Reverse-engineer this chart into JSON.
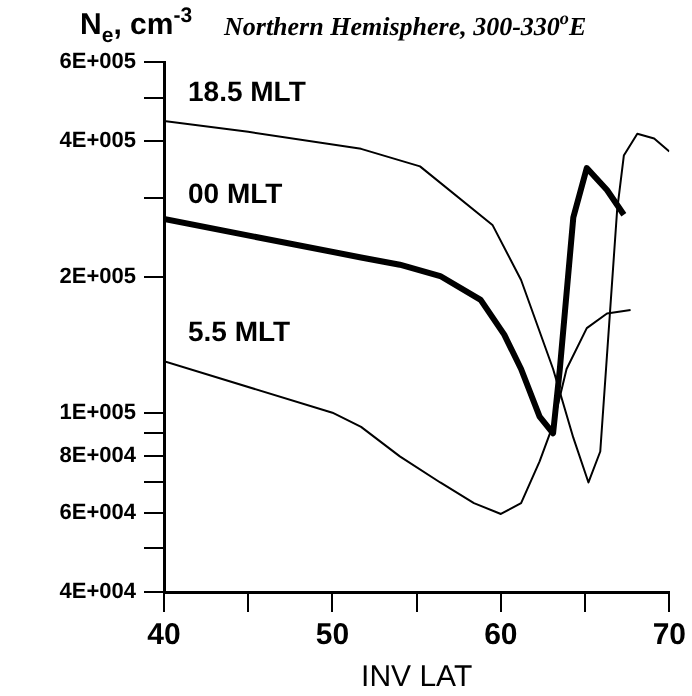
{
  "chart_data": {
    "type": "line",
    "title": "Northern Hemisphere, 300-330$^{o}$E",
    "ylabel": "N$_{e}$, cm$^{-3}$",
    "xlabel": "INV LAT",
    "log": true,
    "grid": false,
    "legend": false,
    "marker": "none",
    "line_style": "solid",
    "xlim": [
      40,
      70
    ],
    "xticks": [
      40,
      {
        "value": 45,
        "label": null
      },
      50,
      {
        "value": 55,
        "label": null
      },
      60,
      {
        "value": 65,
        "label": null
      },
      70
    ],
    "ylim": [
      40000,
      600000
    ],
    "yticks": [
      {
        "value": 40000,
        "label": "4E+004"
      },
      {
        "value": 50000,
        "label": null
      },
      {
        "value": 60000,
        "label": "6E+004"
      },
      {
        "value": 70000,
        "label": null
      },
      {
        "value": 80000,
        "label": "8E+004"
      },
      {
        "value": 90000,
        "label": null
      },
      {
        "value": 100000,
        "label": "1E+005"
      },
      {
        "value": 200000,
        "label": "2E+005"
      },
      {
        "value": 300000,
        "label": null
      },
      {
        "value": 400000,
        "label": "4E+005"
      },
      {
        "value": 500000,
        "label": null
      },
      {
        "value": 600000,
        "label": "6E+005"
      }
    ],
    "series": [
      {
        "name": "18.5 MLT",
        "color": "#000000",
        "x": [
          40,
          45,
          51.7,
          55.2,
          59.5,
          61.2,
          63.1,
          64.3,
          65.2,
          65.9,
          66.9,
          67.3,
          68.1,
          69.1,
          70
        ],
        "values": [
          444000,
          420000,
          385000,
          352000,
          261000,
          197000,
          125000,
          88000,
          70000,
          82000,
          281000,
          372000,
          416000,
          406000,
          380000
        ]
      },
      {
        "name": "00 MLT",
        "color": "#000000",
        "x": [
          40,
          51.7,
          54,
          56.4,
          58.8,
          60.2,
          61.2,
          62.3,
          63.1,
          63.5,
          64.3,
          65.1,
          66.3,
          67.3
        ],
        "values": [
          269000,
          221000,
          213000,
          201000,
          178000,
          149000,
          125000,
          98000,
          90000,
          125000,
          271000,
          349000,
          312000,
          275000
        ]
      },
      {
        "name": "5.5 MLT",
        "color": "#000000",
        "x": [
          40,
          50,
          51.7,
          54,
          56.4,
          58.4,
          60,
          61.2,
          62.3,
          63.1,
          63.9,
          65.1,
          66.3,
          67.7
        ],
        "values": [
          130000,
          100000,
          93000,
          80000,
          70000,
          63000,
          59600,
          63000,
          78000,
          94000,
          125000,
          154000,
          166000,
          169000
        ]
      }
    ]
  }
}
